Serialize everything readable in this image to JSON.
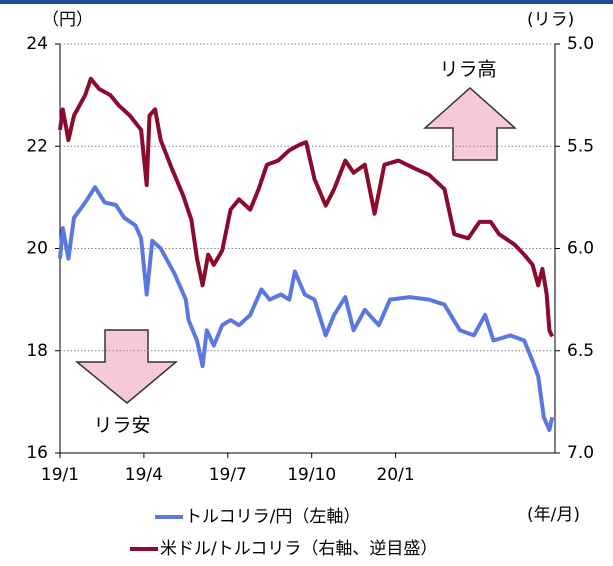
{
  "chart_data": {
    "type": "line",
    "left_unit": "（円）",
    "right_unit": "(リラ)",
    "x_unit": "(年/月)",
    "annotations": [
      "リラ高",
      "リラ安"
    ],
    "xlim": [
      0,
      17.7
    ],
    "xticks": [
      {
        "value": 0,
        "label": "19/1"
      },
      {
        "value": 3,
        "label": "19/4"
      },
      {
        "value": 6,
        "label": "19/7"
      },
      {
        "value": 9,
        "label": "19/10"
      },
      {
        "value": 12,
        "label": "20/1"
      }
    ],
    "ylim": [
      16,
      24
    ],
    "yticks": [
      16,
      18,
      20,
      22,
      24
    ],
    "y2lim": [
      5.0,
      7.0
    ],
    "y2_inverted": true,
    "y2ticks": [
      {
        "value": 5.0,
        "label": "5.0"
      },
      5.5,
      {
        "value": 6.0,
        "label": "6.0"
      },
      6.5,
      {
        "value": 7.0,
        "label": "7.0"
      }
    ],
    "grid": true,
    "series": [
      {
        "name": "トルコリラ/円（左軸）",
        "color": "#5b78e0",
        "x": [
          0,
          0.1,
          0.3,
          0.5,
          0.9,
          1.25,
          1.6,
          2.0,
          2.3,
          2.7,
          2.9,
          3.1,
          3.3,
          3.6,
          3.9,
          4.1,
          4.5,
          4.6,
          4.9,
          5.1,
          5.25,
          5.5,
          5.8,
          6.1,
          6.4,
          6.8,
          7.2,
          7.5,
          7.9,
          8.2,
          8.4,
          8.75,
          9.1,
          9.5,
          9.8,
          10.2,
          10.5,
          10.9,
          11.4,
          11.8,
          12.5,
          13.2,
          13.75,
          14.3,
          14.8,
          15.2,
          15.5,
          16.1,
          16.6,
          16.9,
          17.1,
          17.3,
          17.5,
          17.6
        ],
        "values": [
          19.8,
          20.4,
          19.8,
          20.6,
          20.9,
          21.2,
          20.9,
          20.85,
          20.6,
          20.45,
          20.2,
          19.1,
          20.15,
          20.0,
          19.7,
          19.5,
          19.0,
          18.6,
          18.2,
          17.7,
          18.4,
          18.1,
          18.5,
          18.6,
          18.5,
          18.7,
          19.2,
          19.0,
          19.1,
          19.0,
          19.55,
          19.1,
          19.0,
          18.3,
          18.7,
          19.05,
          18.4,
          18.8,
          18.5,
          19.0,
          19.05,
          19.0,
          18.9,
          18.4,
          18.3,
          18.7,
          18.2,
          18.3,
          18.2,
          17.8,
          17.5,
          16.7,
          16.45,
          16.7
        ]
      },
      {
        "name": "米ドル/トルコリラ（右軸、逆目盛）",
        "color": "#8b0a2e",
        "axis": "y2",
        "x": [
          0,
          0.1,
          0.3,
          0.5,
          0.9,
          1.1,
          1.4,
          1.8,
          2.1,
          2.5,
          2.9,
          3.1,
          3.2,
          3.4,
          3.6,
          4.0,
          4.4,
          4.7,
          4.9,
          5.1,
          5.3,
          5.5,
          5.8,
          6.1,
          6.4,
          6.8,
          7.1,
          7.4,
          7.8,
          8.2,
          8.6,
          8.8,
          9.1,
          9.5,
          9.8,
          10.2,
          10.5,
          10.9,
          11.25,
          11.6,
          12.1,
          12.7,
          13.2,
          13.75,
          14.1,
          14.6,
          15.0,
          15.4,
          15.7,
          16.25,
          16.6,
          16.9,
          17.1,
          17.25,
          17.4,
          17.5,
          17.6
        ],
        "values": [
          5.42,
          5.32,
          5.47,
          5.35,
          5.25,
          5.17,
          5.22,
          5.25,
          5.3,
          5.35,
          5.42,
          5.69,
          5.35,
          5.32,
          5.47,
          5.61,
          5.74,
          5.86,
          6.05,
          6.18,
          6.03,
          6.08,
          6.01,
          5.81,
          5.76,
          5.81,
          5.71,
          5.59,
          5.57,
          5.52,
          5.49,
          5.48,
          5.66,
          5.79,
          5.71,
          5.57,
          5.63,
          5.59,
          5.83,
          5.59,
          5.57,
          5.61,
          5.64,
          5.71,
          5.93,
          5.95,
          5.87,
          5.87,
          5.93,
          5.98,
          6.03,
          6.08,
          6.18,
          6.1,
          6.22,
          6.4,
          6.43
        ]
      }
    ]
  }
}
